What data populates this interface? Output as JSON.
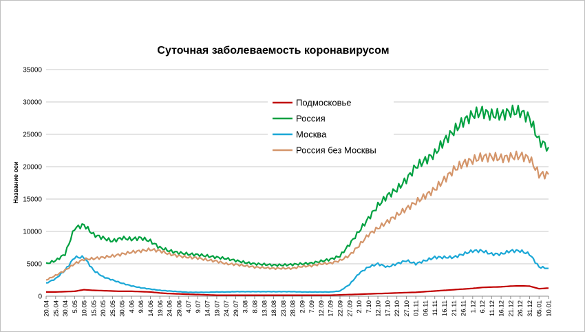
{
  "chart_data": {
    "type": "line",
    "title": "Суточная заболеваемость коронавирусом",
    "ylabel": "Название оси",
    "xlabel": "",
    "ylim": [
      0,
      35000
    ],
    "yticks": [
      "0",
      "5000",
      "10000",
      "15000",
      "20000",
      "25000",
      "30000",
      "35000"
    ],
    "grid": "horizontal",
    "legend_position": "top-center",
    "x_tick_labels": [
      "20.04",
      "25.04",
      "30.04",
      "5.05",
      "10.05",
      "15.05",
      "20.05",
      "25.05",
      "30.05",
      "4.06",
      "9.06",
      "14.06",
      "19.06",
      "24.06",
      "29.06",
      "4.07",
      "9.07",
      "14.07",
      "19.07",
      "24.07",
      "29.07",
      "3.08",
      "8.08",
      "13.08",
      "18.08",
      "23.08",
      "28.08",
      "2.09",
      "7.09",
      "12.09",
      "17.09",
      "22.09",
      "27.09",
      "2.10",
      "7.10",
      "12.10",
      "17.10",
      "22.10",
      "27.10",
      "01.11",
      "06.11",
      "11.11",
      "16.11",
      "21.11",
      "26.11",
      "1.12",
      "6.12",
      "11.12",
      "16.12",
      "21.12",
      "26.12",
      "31.12",
      "05.01",
      "10.01"
    ],
    "series": [
      {
        "name": "Подмосковье",
        "color": "#c00000",
        "values": [
          650,
          650,
          700,
          750,
          1000,
          900,
          850,
          800,
          750,
          750,
          700,
          650,
          500,
          400,
          350,
          300,
          250,
          200,
          150,
          150,
          150,
          150,
          150,
          150,
          150,
          150,
          150,
          150,
          150,
          150,
          150,
          200,
          250,
          300,
          350,
          400,
          450,
          500,
          550,
          600,
          700,
          800,
          900,
          1000,
          1100,
          1200,
          1350,
          1400,
          1450,
          1550,
          1600,
          1550,
          1150,
          1250
        ]
      },
      {
        "name": "Россия",
        "color": "#00a040",
        "values": [
          5000,
          5500,
          6500,
          10500,
          11000,
          9500,
          9000,
          8500,
          9000,
          8800,
          9000,
          8500,
          7500,
          7000,
          6700,
          6500,
          6400,
          6200,
          6000,
          5800,
          5500,
          5200,
          5000,
          4900,
          4800,
          4800,
          4900,
          5000,
          5100,
          5400,
          5700,
          6200,
          8000,
          10000,
          12000,
          14000,
          15500,
          16500,
          18000,
          20000,
          21000,
          22000,
          24000,
          25500,
          27000,
          28000,
          28500,
          28000,
          28000,
          28500,
          28500,
          27500,
          24000,
          23000
        ]
      },
      {
        "name": "Москва",
        "color": "#1aa7d6",
        "values": [
          2000,
          2700,
          4000,
          6000,
          6000,
          4000,
          3000,
          2500,
          2000,
          1600,
          1300,
          1100,
          900,
          800,
          700,
          600,
          600,
          600,
          650,
          650,
          700,
          700,
          700,
          700,
          700,
          700,
          700,
          650,
          650,
          650,
          650,
          800,
          1800,
          3500,
          4500,
          5000,
          4500,
          5000,
          5500,
          5000,
          5500,
          6000,
          6000,
          6000,
          6500,
          7000,
          7000,
          6500,
          6500,
          7000,
          7000,
          6500,
          4500,
          4300
        ]
      },
      {
        "name": "Россия без Москвы",
        "color": "#d4956a",
        "values": [
          2500,
          3200,
          4000,
          5000,
          5700,
          5800,
          6000,
          6200,
          6500,
          6800,
          7000,
          7200,
          7000,
          6500,
          6200,
          6000,
          5900,
          5600,
          5400,
          5000,
          4900,
          4700,
          4500,
          4400,
          4300,
          4300,
          4300,
          4600,
          4700,
          5000,
          5100,
          5500,
          6300,
          7800,
          9500,
          10500,
          11500,
          12500,
          13500,
          14500,
          15500,
          16500,
          18000,
          19500,
          20500,
          21000,
          21500,
          21500,
          21300,
          21500,
          21700,
          21300,
          18800,
          18800
        ]
      }
    ]
  }
}
